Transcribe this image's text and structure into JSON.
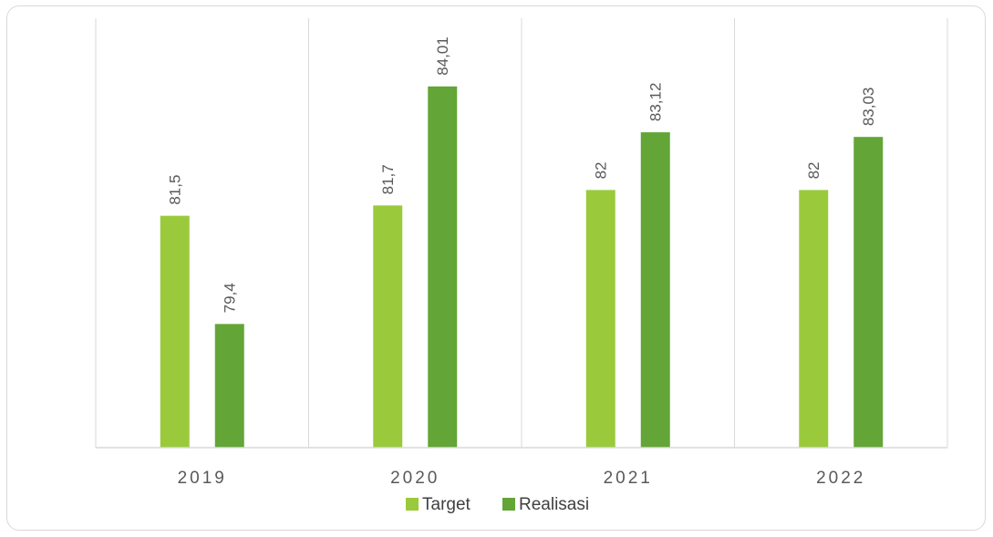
{
  "chart_data": {
    "type": "bar",
    "categories": [
      "2019",
      "2020",
      "2021",
      "2022"
    ],
    "series": [
      {
        "name": "Target",
        "values": [
          81.5,
          81.7,
          82,
          82
        ],
        "labels": [
          "81,5",
          "81,7",
          "82",
          "82"
        ],
        "color": "#9ACA3C"
      },
      {
        "name": "Realisasi",
        "values": [
          79.4,
          84.01,
          83.12,
          83.03
        ],
        "labels": [
          "79,4",
          "84,01",
          "83,12",
          "83,03"
        ],
        "color": "#63A537"
      }
    ],
    "title": "",
    "xlabel": "",
    "ylabel": "",
    "ylim": [
      77.0,
      84.5
    ],
    "grid": "vertical category separators",
    "legend": "bottom-center"
  }
}
